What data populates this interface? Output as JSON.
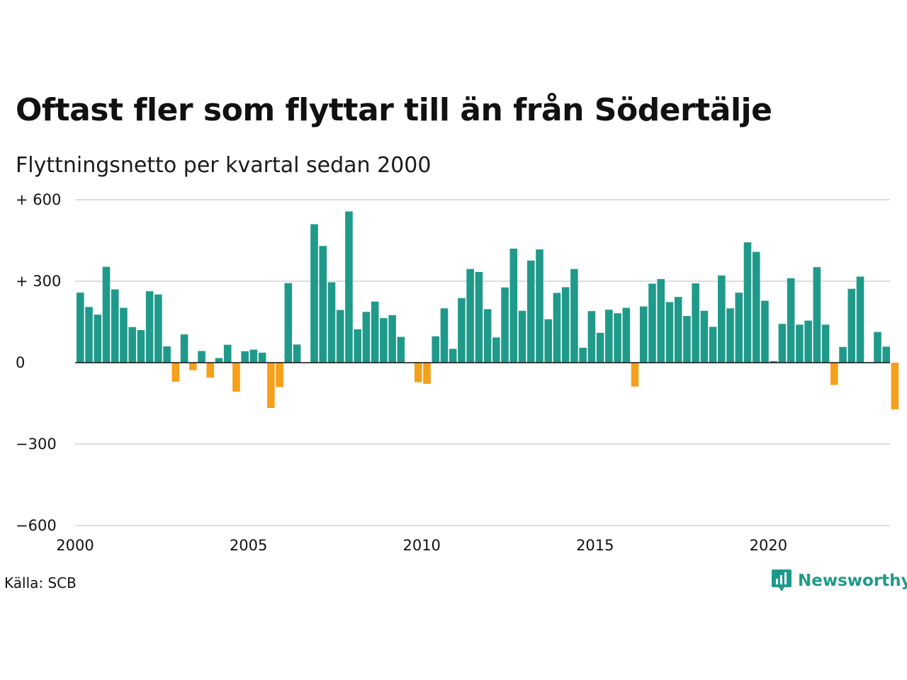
{
  "header": {
    "title": "Oftast fler som flyttar till än från Södertälje",
    "subtitle": "Flyttningsnetto per kvartal sedan 2000"
  },
  "footer": {
    "source": "Källa: SCB",
    "brand": "Newsworthy"
  },
  "colors": {
    "positive": "#1f9a8a",
    "negative": "#f5a01a",
    "grid": "#dddddd",
    "zero_line": "#111111",
    "brand": "#1f9a8a"
  },
  "chart_data": {
    "type": "bar",
    "title": "Oftast fler som flyttar till än från Södertälje",
    "subtitle": "Flyttningsnetto per kvartal sedan 2000",
    "xlabel": "",
    "ylabel": "",
    "ylim": [
      -600,
      600
    ],
    "yticks": [
      {
        "value": 600,
        "label": "+ 600"
      },
      {
        "value": 300,
        "label": "+ 300"
      },
      {
        "value": 0,
        "label": "0"
      },
      {
        "value": -300,
        "label": "−300"
      },
      {
        "value": -600,
        "label": "−600"
      }
    ],
    "xticks": [
      "2000",
      "2005",
      "2010",
      "2015",
      "2020"
    ],
    "grid": true,
    "start_year": 2000,
    "values": [
      258,
      205,
      177,
      353,
      270,
      202,
      131,
      120,
      263,
      251,
      60,
      -70,
      104,
      -28,
      43,
      -55,
      17,
      66,
      -107,
      42,
      48,
      37,
      -167,
      -90,
      293,
      67,
      0,
      510,
      430,
      296,
      194,
      557,
      123,
      187,
      225,
      164,
      175,
      95,
      0,
      -72,
      -78,
      97,
      200,
      51,
      238,
      345,
      334,
      197,
      93,
      277,
      420,
      191,
      376,
      417,
      160,
      257,
      278,
      345,
      55,
      190,
      110,
      195,
      182,
      202,
      -88,
      207,
      291,
      308,
      223,
      242,
      172,
      292,
      191,
      132,
      321,
      200,
      258,
      443,
      408,
      228,
      6,
      143,
      311,
      140,
      155,
      352,
      140,
      -82,
      58,
      272,
      317,
      2,
      113,
      59,
      -172
    ]
  }
}
